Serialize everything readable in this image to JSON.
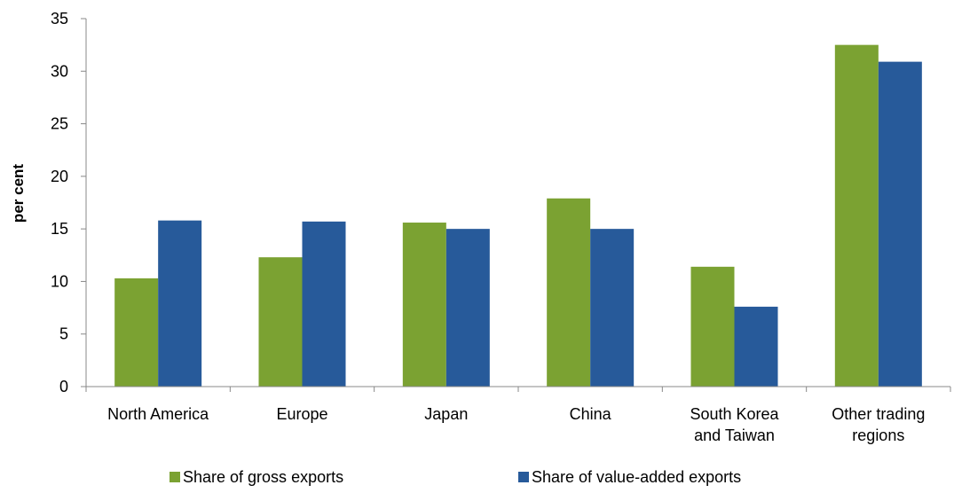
{
  "chart_data": {
    "type": "bar",
    "title": "",
    "xlabel": "",
    "ylabel": "per cent",
    "ylim": [
      0,
      35
    ],
    "yticks": [
      0,
      5,
      10,
      15,
      20,
      25,
      30,
      35
    ],
    "grid": false,
    "legend_position": "bottom",
    "categories": [
      [
        "North America"
      ],
      [
        "Europe"
      ],
      [
        "Japan"
      ],
      [
        "China"
      ],
      [
        "South Korea",
        "and Taiwan"
      ],
      [
        "Other trading",
        "regions"
      ]
    ],
    "series": [
      {
        "name": "Share of gross exports",
        "color": "#7ba232",
        "values": [
          10.3,
          12.3,
          15.6,
          17.9,
          11.4,
          32.5
        ]
      },
      {
        "name": "Share of value-added exports",
        "color": "#275a9a",
        "values": [
          15.8,
          15.7,
          15.0,
          15.0,
          7.6,
          30.9
        ]
      }
    ]
  }
}
